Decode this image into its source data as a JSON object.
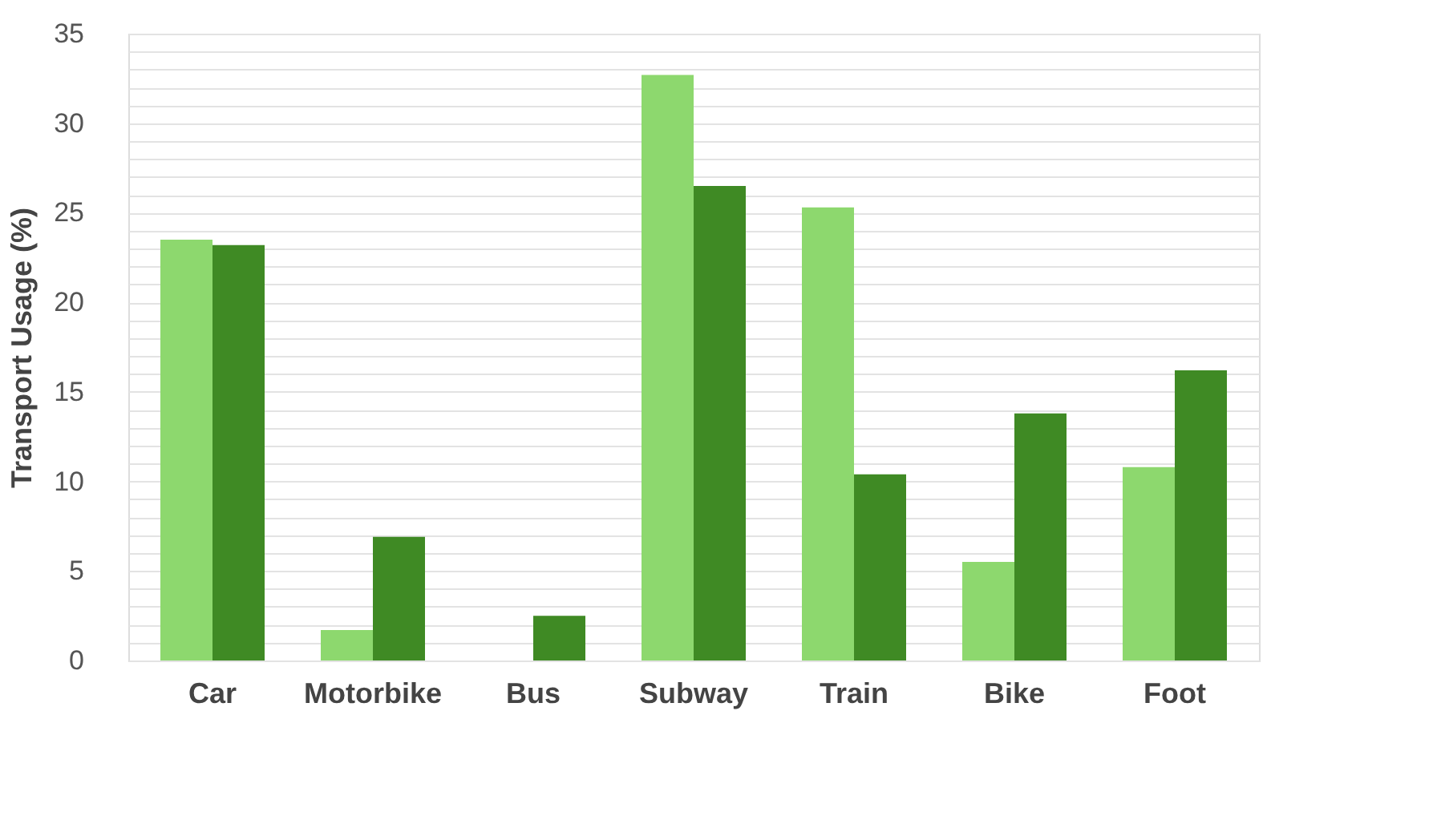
{
  "chart_data": {
    "type": "bar",
    "ylabel": "Transport Usage (%)",
    "categories": [
      "Car",
      "Motorbike",
      "Bus",
      "Subway",
      "Train",
      "Bike",
      "Foot"
    ],
    "series": [
      {
        "color": "#8dd86e",
        "values": [
          23.5,
          1.7,
          null,
          32.7,
          25.3,
          5.5,
          10.8
        ]
      },
      {
        "color": "#3f8a24",
        "values": [
          23.2,
          6.9,
          2.5,
          26.5,
          10.4,
          13.8,
          16.2
        ]
      }
    ],
    "ylim": [
      0,
      35
    ],
    "yticks": [
      0,
      {
        "value": 1,
        "label": null
      },
      {
        "value": 2,
        "label": null
      },
      {
        "value": 3,
        "label": null
      },
      {
        "value": 4,
        "label": null
      },
      5,
      {
        "value": 6,
        "label": null
      },
      {
        "value": 7,
        "label": null
      },
      {
        "value": 8,
        "label": null
      },
      {
        "value": 9,
        "label": null
      },
      10,
      {
        "value": 11,
        "label": null
      },
      {
        "value": 12,
        "label": null
      },
      {
        "value": 13,
        "label": null
      },
      {
        "value": 14,
        "label": null
      },
      15,
      {
        "value": 16,
        "label": null
      },
      {
        "value": 17,
        "label": null
      },
      {
        "value": 18,
        "label": null
      },
      {
        "value": 19,
        "label": null
      },
      20,
      {
        "value": 21,
        "label": null
      },
      {
        "value": 22,
        "label": null
      },
      {
        "value": 23,
        "label": null
      },
      {
        "value": 24,
        "label": null
      },
      25,
      {
        "value": 26,
        "label": null
      },
      {
        "value": 27,
        "label": null
      },
      {
        "value": 28,
        "label": null
      },
      {
        "value": 29,
        "label": null
      },
      30,
      {
        "value": 31,
        "label": null
      },
      {
        "value": 32,
        "label": null
      },
      {
        "value": 33,
        "label": null
      },
      {
        "value": 34,
        "label": null
      },
      35
    ],
    "grid": "y",
    "legend": false
  }
}
